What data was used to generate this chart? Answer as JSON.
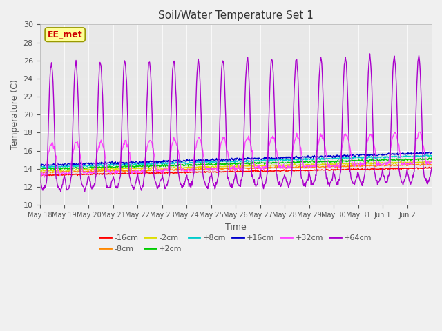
{
  "title": "Soil/Water Temperature Set 1",
  "xlabel": "Time",
  "ylabel": "Temperature (C)",
  "ylim": [
    10,
    30
  ],
  "xlim": [
    0,
    16
  ],
  "plot_bg_color": "#e8e8e8",
  "watermark": "EE_met",
  "xtick_labels": [
    "May 18",
    "May 19",
    "May 20",
    "May 21",
    "May 22",
    "May 23",
    "May 24",
    "May 25",
    "May 26",
    "May 27",
    "May 28",
    "May 29",
    "May 30",
    "May 31",
    "Jun 1",
    "Jun 2"
  ],
  "colors": {
    "-16cm": "#ff0000",
    "-8cm": "#ff8800",
    "-2cm": "#dddd00",
    "+2cm": "#00cc00",
    "+8cm": "#00cccc",
    "+16cm": "#0000cc",
    "+32cm": "#ff44ff",
    "+64cm": "#aa00cc"
  },
  "grid_color": "#ffffff",
  "linewidth": 1.0
}
